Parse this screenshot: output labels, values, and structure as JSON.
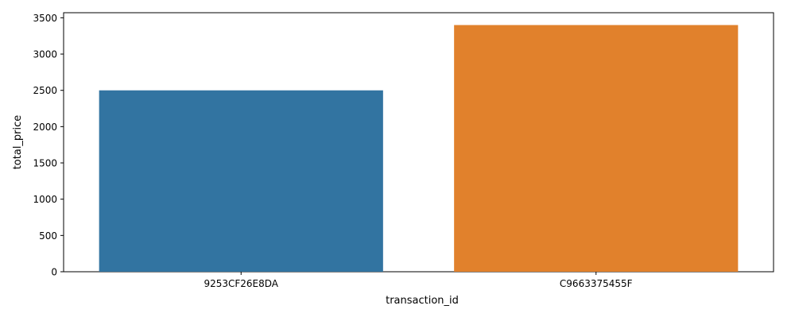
{
  "chart_data": {
    "type": "bar",
    "title": "",
    "xlabel": "transaction_id",
    "ylabel": "total_price",
    "categories": [
      "9253CF26E8DA",
      "C9663375455F"
    ],
    "values": [
      2500,
      3400
    ],
    "colors": [
      "#3274a1",
      "#e1812c"
    ],
    "ylim": [
      0,
      3570
    ],
    "yticks": [
      0,
      500,
      1000,
      1500,
      2000,
      2500,
      3000,
      3500
    ],
    "grid": false,
    "legend": "none"
  }
}
